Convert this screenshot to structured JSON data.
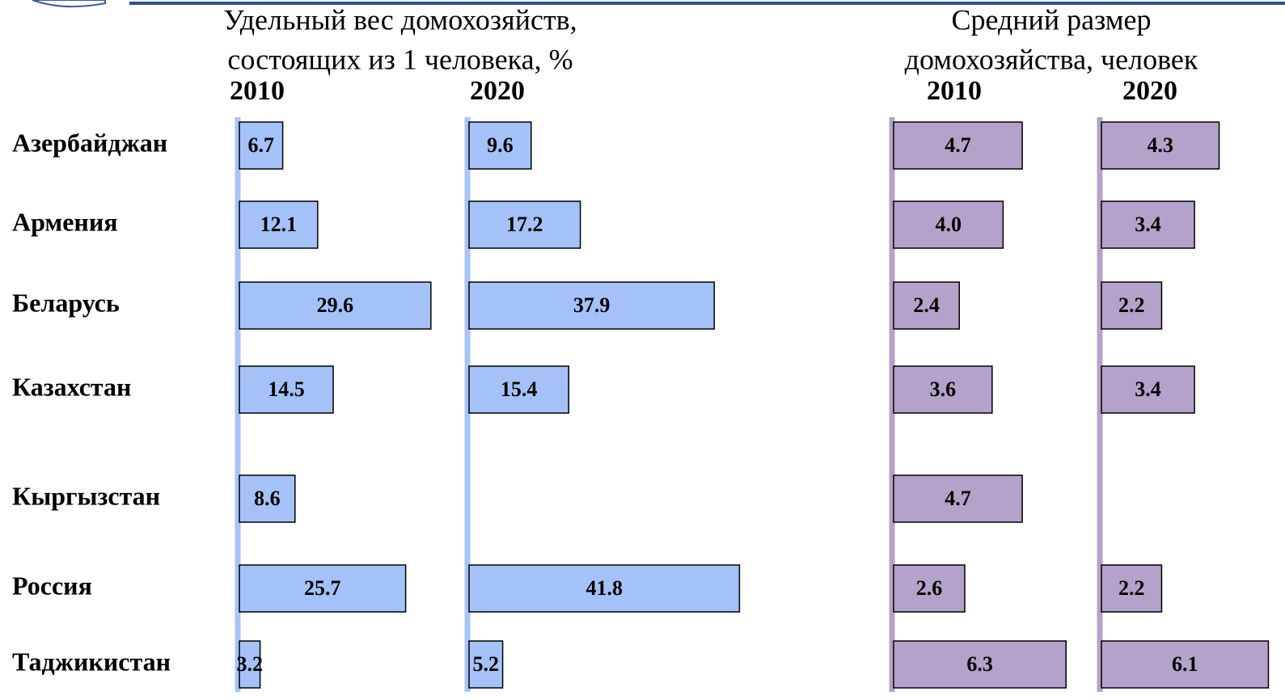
{
  "categories": [
    "Азербайджан",
    "Армения",
    "Беларусь",
    "Казахстан",
    "Кыргызстан",
    "Россия",
    "Таджикистан"
  ],
  "chart_data": [
    {
      "type": "bar",
      "orientation": "horizontal",
      "title": [
        "Удельный вес домохозяйств,",
        "состоящих из 1 человека, %"
      ],
      "xlim": [
        0,
        42
      ],
      "series": [
        {
          "name": "2010",
          "color": "#a4c2f7",
          "values": [
            6.7,
            12.1,
            29.6,
            14.5,
            8.6,
            25.7,
            3.2
          ]
        },
        {
          "name": "2020",
          "color": "#a4c2f7",
          "values": [
            9.6,
            17.2,
            37.9,
            15.4,
            null,
            41.8,
            5.2
          ]
        }
      ]
    },
    {
      "type": "bar",
      "orientation": "horizontal",
      "title": [
        "Средний размер",
        "домохозяйства, человек"
      ],
      "xlim": [
        0,
        6.5
      ],
      "series": [
        {
          "name": "2010",
          "color": "#b3a2c9",
          "values": [
            4.7,
            4.0,
            2.4,
            3.6,
            4.7,
            2.6,
            6.3
          ],
          "value_labels": [
            "4.7",
            "4.0",
            "2.4",
            "3.6",
            "4.7",
            "2.6",
            "6.3"
          ]
        },
        {
          "name": "2020",
          "color": "#b3a2c9",
          "values": [
            4.3,
            3.4,
            2.2,
            3.4,
            null,
            2.2,
            6.1
          ],
          "value_labels": [
            "4.3",
            "3.4",
            "2.2",
            "3.4",
            null,
            "2.2",
            "6.1"
          ]
        }
      ]
    }
  ]
}
